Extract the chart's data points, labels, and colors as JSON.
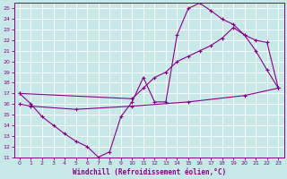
{
  "xlabel": "Windchill (Refroidissement éolien,°C)",
  "ylabel": "",
  "bg_color": "#c8e8e8",
  "line_color": "#880088",
  "grid_color": "#ffffff",
  "xlim": [
    -0.5,
    23.5
  ],
  "ylim": [
    11,
    25.5
  ],
  "xticks": [
    0,
    1,
    2,
    3,
    4,
    5,
    6,
    7,
    8,
    9,
    10,
    11,
    12,
    13,
    14,
    15,
    16,
    17,
    18,
    19,
    20,
    21,
    22,
    23
  ],
  "yticks": [
    11,
    12,
    13,
    14,
    15,
    16,
    17,
    18,
    19,
    20,
    21,
    22,
    23,
    24,
    25
  ],
  "line1_x": [
    0,
    1,
    2,
    3,
    4,
    5,
    6,
    7,
    8,
    9,
    10,
    11,
    12,
    13,
    14,
    15,
    16,
    17,
    18,
    19,
    20,
    21,
    22,
    23
  ],
  "line1_y": [
    17.0,
    16.0,
    14.8,
    14.0,
    13.2,
    12.5,
    12.0,
    11.0,
    11.5,
    14.8,
    16.2,
    18.5,
    16.2,
    16.2,
    22.5,
    25.0,
    25.5,
    24.8,
    24.0,
    23.5,
    22.5,
    21.0,
    19.2,
    17.5
  ],
  "line2_x": [
    0,
    10,
    11,
    12,
    13,
    14,
    15,
    16,
    17,
    18,
    19,
    20,
    21,
    22,
    23
  ],
  "line2_y": [
    17.0,
    16.5,
    17.5,
    18.5,
    19.0,
    20.0,
    20.5,
    21.0,
    21.5,
    22.2,
    23.2,
    22.5,
    22.0,
    21.8,
    17.5
  ],
  "line3_x": [
    0,
    1,
    5,
    10,
    15,
    20,
    23
  ],
  "line3_y": [
    16.0,
    15.8,
    15.5,
    15.8,
    16.2,
    16.8,
    17.5
  ]
}
